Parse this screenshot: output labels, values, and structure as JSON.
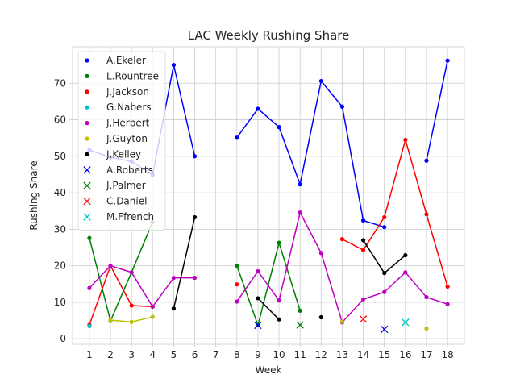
{
  "chart_data": {
    "type": "line",
    "title": "LAC Weekly Rushing Share",
    "xlabel": "Week",
    "ylabel": "Rushing Share",
    "x": [
      1,
      2,
      3,
      4,
      5,
      6,
      7,
      8,
      9,
      10,
      11,
      12,
      13,
      14,
      15,
      16,
      17,
      18
    ],
    "xlim": [
      0.2,
      18.8
    ],
    "ylim": [
      -1.5,
      80
    ],
    "yticks": [
      0,
      10,
      20,
      30,
      40,
      50,
      60,
      70
    ],
    "grid": true,
    "legend_position": "top-left",
    "series": [
      {
        "name": "A.Ekeler",
        "color": "#0000ff",
        "marker": "dot",
        "values": [
          51.7,
          49.7,
          48.6,
          44.9,
          75.0,
          50.0,
          null,
          55.1,
          63.0,
          58.0,
          42.3,
          70.6,
          63.6,
          32.4,
          30.6,
          null,
          48.8,
          76.2
        ]
      },
      {
        "name": "L.Rountree",
        "color": "#008000",
        "marker": "dot",
        "values": [
          27.6,
          4.9,
          18.2,
          32.0,
          null,
          null,
          null,
          20.0,
          3.7,
          26.3,
          7.7,
          null,
          null,
          null,
          null,
          null,
          null,
          null
        ]
      },
      {
        "name": "J.Jackson",
        "color": "#ff0000",
        "marker": "dot",
        "values": [
          3.8,
          20.0,
          9.1,
          8.8,
          null,
          null,
          null,
          14.9,
          null,
          null,
          null,
          null,
          27.3,
          24.3,
          33.3,
          54.5,
          34.1,
          14.3
        ]
      },
      {
        "name": "G.Nabers",
        "color": "#00bfbf",
        "marker": "dot",
        "values": [
          3.5,
          null,
          null,
          null,
          null,
          null,
          null,
          null,
          null,
          null,
          null,
          null,
          null,
          null,
          null,
          null,
          null,
          null
        ]
      },
      {
        "name": "J.Herbert",
        "color": "#bf00bf",
        "marker": "dot",
        "values": [
          13.9,
          20.0,
          18.2,
          8.8,
          16.7,
          16.7,
          null,
          10.2,
          18.5,
          10.5,
          34.6,
          23.5,
          4.5,
          10.8,
          12.8,
          18.2,
          11.4,
          9.5
        ]
      },
      {
        "name": "J.Guyton",
        "color": "#bfbf00",
        "marker": "dot",
        "values": [
          null,
          5.1,
          4.6,
          6.0,
          null,
          null,
          null,
          null,
          null,
          null,
          null,
          null,
          4.7,
          null,
          null,
          null,
          2.8,
          null
        ]
      },
      {
        "name": "J.Kelley",
        "color": "#000000",
        "marker": "dot",
        "values": [
          null,
          null,
          null,
          null,
          8.3,
          33.3,
          null,
          null,
          11.1,
          5.3,
          null,
          5.9,
          null,
          27.0,
          18.0,
          22.9,
          null,
          null
        ]
      },
      {
        "name": "A.Roberts",
        "color": "#0000ff",
        "marker": "x",
        "values": [
          null,
          null,
          null,
          null,
          null,
          null,
          null,
          null,
          3.7,
          null,
          null,
          null,
          null,
          null,
          2.6,
          null,
          null,
          null
        ]
      },
      {
        "name": "J.Palmer",
        "color": "#008000",
        "marker": "x",
        "values": [
          null,
          null,
          null,
          null,
          null,
          null,
          null,
          null,
          null,
          null,
          3.8,
          null,
          null,
          null,
          null,
          null,
          null,
          null
        ]
      },
      {
        "name": "C.Daniel",
        "color": "#ff0000",
        "marker": "x",
        "values": [
          null,
          null,
          null,
          null,
          null,
          null,
          null,
          null,
          null,
          null,
          null,
          null,
          null,
          5.4,
          null,
          null,
          null,
          null
        ]
      },
      {
        "name": "M.Ffrench",
        "color": "#00bfbf",
        "marker": "x",
        "values": [
          null,
          null,
          null,
          null,
          null,
          null,
          null,
          null,
          null,
          null,
          null,
          null,
          null,
          null,
          null,
          4.5,
          null,
          null
        ]
      }
    ]
  }
}
